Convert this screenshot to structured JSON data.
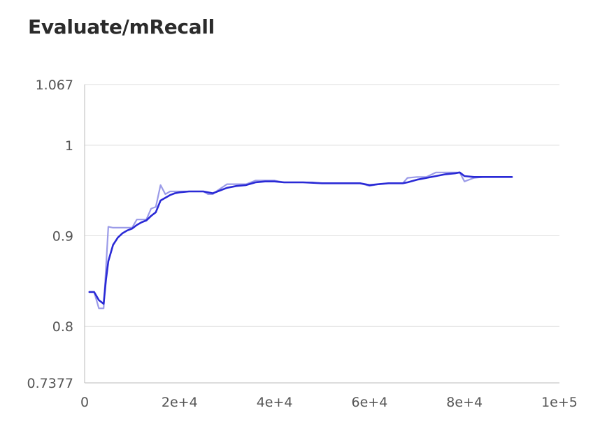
{
  "chart_data": {
    "type": "line",
    "title": "Evaluate/mRecall",
    "xlabel": "",
    "ylabel": "",
    "xlim": [
      0,
      100000
    ],
    "ylim": [
      0.7377,
      1.067
    ],
    "x_ticks": [
      0,
      20000,
      40000,
      60000,
      80000,
      100000
    ],
    "x_tick_labels": [
      "0",
      "2e+4",
      "4e+4",
      "6e+4",
      "8e+4",
      "1e+5"
    ],
    "y_ticks": [
      0.7377,
      0.8,
      0.9,
      1,
      1.067
    ],
    "y_tick_labels": [
      "0.7377",
      "0.8",
      "0.9",
      "1",
      "1.067"
    ],
    "grid": "horizontal",
    "legend": "none",
    "colors": {
      "raw": "#9b9be8",
      "smoothed": "#2a2ad6",
      "grid": "#dddddd",
      "axis": "#bbbbbb"
    },
    "series": [
      {
        "role": "raw",
        "x": [
          1000,
          2000,
          3000,
          4000,
          5000,
          6000,
          7000,
          8000,
          9000,
          10000,
          11000,
          12000,
          13000,
          14000,
          15000,
          16000,
          17000,
          18000,
          19000,
          20000,
          21000,
          22000,
          23000,
          24000,
          25000,
          26000,
          27000,
          28000,
          30000,
          32000,
          34000,
          36000,
          38000,
          40000,
          42000,
          44000,
          46000,
          48000,
          50000,
          52000,
          54000,
          56000,
          58000,
          60000,
          62000,
          64000,
          66000,
          67000,
          68000,
          70000,
          72000,
          74000,
          76000,
          78000,
          79000,
          80000,
          82000,
          84000,
          86000,
          88000,
          90000
        ],
        "y": [
          0.838,
          0.838,
          0.82,
          0.82,
          0.91,
          0.909,
          0.909,
          0.909,
          0.909,
          0.909,
          0.918,
          0.918,
          0.918,
          0.93,
          0.932,
          0.956,
          0.946,
          0.949,
          0.949,
          0.949,
          0.949,
          0.949,
          0.949,
          0.949,
          0.949,
          0.946,
          0.946,
          0.95,
          0.957,
          0.957,
          0.957,
          0.961,
          0.961,
          0.961,
          0.959,
          0.959,
          0.959,
          0.959,
          0.958,
          0.958,
          0.958,
          0.958,
          0.958,
          0.955,
          0.957,
          0.958,
          0.958,
          0.958,
          0.964,
          0.965,
          0.965,
          0.97,
          0.97,
          0.97,
          0.97,
          0.96,
          0.964,
          0.965,
          0.965,
          0.965,
          0.965
        ]
      },
      {
        "role": "smoothed",
        "x": [
          1000,
          2000,
          3000,
          4000,
          4500,
          5000,
          6000,
          7000,
          8000,
          9000,
          10000,
          11000,
          12000,
          13000,
          14000,
          15000,
          16000,
          17000,
          18000,
          19000,
          20000,
          22000,
          24000,
          25000,
          26000,
          27000,
          28000,
          30000,
          32000,
          34000,
          36000,
          38000,
          40000,
          42000,
          46000,
          50000,
          54000,
          58000,
          60000,
          62000,
          64000,
          66000,
          67000,
          68000,
          70000,
          72000,
          74000,
          76000,
          78000,
          79000,
          80000,
          82000,
          84000,
          86000,
          88000,
          90000
        ],
        "y": [
          0.838,
          0.838,
          0.829,
          0.825,
          0.852,
          0.872,
          0.89,
          0.898,
          0.903,
          0.906,
          0.908,
          0.912,
          0.915,
          0.917,
          0.922,
          0.926,
          0.939,
          0.942,
          0.945,
          0.947,
          0.948,
          0.949,
          0.949,
          0.949,
          0.948,
          0.947,
          0.949,
          0.953,
          0.955,
          0.956,
          0.959,
          0.96,
          0.96,
          0.959,
          0.959,
          0.958,
          0.958,
          0.958,
          0.956,
          0.957,
          0.958,
          0.958,
          0.958,
          0.959,
          0.962,
          0.964,
          0.966,
          0.968,
          0.969,
          0.97,
          0.966,
          0.965,
          0.965,
          0.965,
          0.965,
          0.965
        ]
      }
    ]
  }
}
